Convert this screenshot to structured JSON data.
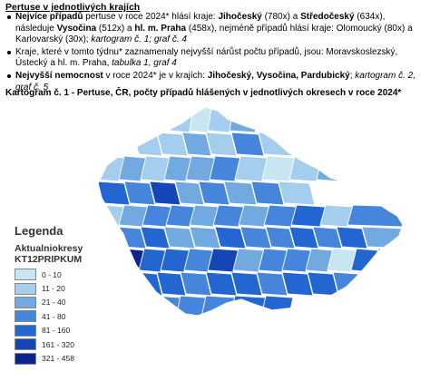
{
  "section_heading": "Pertuse v jednotlivých krajích",
  "bullets": [
    {
      "parts": [
        {
          "text": "Nejvíce případů ",
          "style": "b"
        },
        {
          "text": "pertuse v roce 2024* hlásí kraje: ",
          "style": ""
        },
        {
          "text": "Jihočeský",
          "style": "b"
        },
        {
          "text": " (780x) a ",
          "style": ""
        },
        {
          "text": "Středočeský",
          "style": "b"
        },
        {
          "text": " (634x), následuje ",
          "style": ""
        },
        {
          "text": "Vysočina",
          "style": "b"
        },
        {
          "text": " (512x) a ",
          "style": ""
        },
        {
          "text": "hl. m. Praha",
          "style": "b"
        },
        {
          "text": " (458x), nejméně případů hlásí kraje: Olomoucký (80x) a Karlovarský (30x); ",
          "style": ""
        },
        {
          "text": "kartogram č. 1; graf č. 4",
          "style": "i"
        }
      ]
    },
    {
      "parts": [
        {
          "text": "Kraje, které v tomto týdnu* zaznamenaly nejvyšší nárůst počtu případů, jsou: Moravskoslezský, Ústecký a hl. m. Praha, ",
          "style": ""
        },
        {
          "text": "tabulka 1, graf 4",
          "style": "i"
        }
      ]
    },
    {
      "parts": [
        {
          "text": "Nejvyšší nemocnost",
          "style": "b"
        },
        {
          "text": " v roce 2024* je v krajích: ",
          "style": ""
        },
        {
          "text": "Jihočeský, Vysočina, Pardubický",
          "style": "b"
        },
        {
          "text": "; ",
          "style": ""
        },
        {
          "text": "kartogram č. 2, graf č. 5",
          "style": "i"
        }
      ]
    }
  ],
  "map_caption": "Kartogram č. 1 - Pertuse, ČR, počty případů hlášených v jednotlivých okresech v roce 2024*",
  "legend": {
    "title": "Legenda",
    "layer_name": "Aktualniokresy",
    "field_name": "KT12PRIPKUM",
    "classes": [
      {
        "label": "0 - 10",
        "color": "#c8e6f2"
      },
      {
        "label": "11 - 20",
        "color": "#a4cdee"
      },
      {
        "label": "21 - 40",
        "color": "#72a9e0"
      },
      {
        "label": "41 - 80",
        "color": "#4586dc"
      },
      {
        "label": "81 - 160",
        "color": "#2366d2"
      },
      {
        "label": "161 - 320",
        "color": "#1546b8"
      },
      {
        "label": "321 - 458",
        "color": "#0c2490"
      }
    ]
  },
  "district_classes": [
    1,
    0,
    1,
    2,
    1,
    1,
    2,
    1,
    3,
    1,
    1,
    2,
    1,
    2,
    2,
    3,
    1,
    0,
    1,
    2,
    4,
    3,
    5,
    2,
    3,
    2,
    3,
    1,
    1,
    2,
    3,
    3,
    2,
    3,
    2,
    3,
    4,
    1,
    3,
    4,
    3,
    4,
    2,
    2,
    4,
    3,
    3,
    4,
    3,
    4,
    2,
    4,
    6,
    4,
    4,
    3,
    5,
    2,
    3,
    3,
    2,
    0,
    4,
    5,
    6,
    4,
    4,
    3,
    4,
    4,
    3,
    4,
    4,
    3,
    4,
    4,
    3,
    3,
    3,
    4,
    4
  ]
}
